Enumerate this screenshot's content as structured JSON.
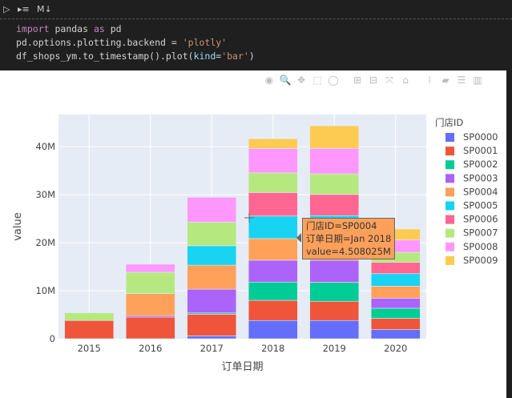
{
  "toolbar": {
    "run_icon": "run-icon",
    "run_below_icon": "run-below-icon",
    "markdown_label": "M↓"
  },
  "code": {
    "line1": {
      "kw": "import",
      "rest": " pandas ",
      "kw2": "as",
      "rest2": " pd"
    },
    "line2": {
      "pre": "pd.options.plotting.backend = ",
      "str": "'plotly'"
    },
    "line3": {
      "pre": "df_shops_ym.to_timestamp().plot(",
      "arg": "kind",
      "eq": "=",
      "str": "'bar'",
      "post": ")"
    }
  },
  "modebar": [
    "camera-icon",
    "zoom-icon",
    "pan-icon",
    "box-select-icon",
    "lasso-icon",
    "zoom-in-icon",
    "zoom-out-icon",
    "autoscale-icon",
    "reset-axes-icon",
    "spike-lines-icon",
    "hover-closest-icon",
    "hover-compare-icon",
    "plotly-logo-icon"
  ],
  "tooltip": {
    "line1": "门店ID=SP0004",
    "line2": "订单日期=Jan 2018",
    "line3": "value=4.508025M"
  },
  "chart_data": {
    "type": "bar",
    "barmode": "stack",
    "xlabel": "订单日期",
    "ylabel": "value",
    "legend_title": "门店ID",
    "legend_placement": "right",
    "categories": [
      "2015",
      "2016",
      "2017",
      "2018",
      "2019",
      "2020"
    ],
    "yticks": [
      "0",
      "10M",
      "20M",
      "30M",
      "40M"
    ],
    "ytick_values": [
      0,
      10000000,
      20000000,
      30000000,
      40000000
    ],
    "ylim": [
      0,
      46700000
    ],
    "grid": true,
    "series": [
      {
        "name": "SP0000",
        "color": "#636efa",
        "values": [
          0,
          0,
          0.6,
          3.8,
          3.8,
          1.9
        ]
      },
      {
        "name": "SP0001",
        "color": "#ef553b",
        "values": [
          3.8,
          4.5,
          4.5,
          4.2,
          4.0,
          2.35
        ]
      },
      {
        "name": "SP0002",
        "color": "#00cc96",
        "values": [
          0,
          0,
          0.27,
          3.8,
          3.95,
          2.1
        ]
      },
      {
        "name": "SP0003",
        "color": "#ab63fa",
        "values": [
          0,
          0.3,
          4.95,
          4.55,
          4.6,
          2.1
        ]
      },
      {
        "name": "SP0004",
        "color": "#ffa15a",
        "values": [
          0,
          4.6,
          5.0,
          4.508025,
          4.5,
          2.5
        ]
      },
      {
        "name": "SP0005",
        "color": "#19d3f3",
        "values": [
          0,
          0,
          4.05,
          4.7,
          4.8,
          2.6
        ]
      },
      {
        "name": "SP0006",
        "color": "#ff6692",
        "values": [
          0,
          0,
          0,
          4.9,
          4.4,
          2.35
        ]
      },
      {
        "name": "SP0007",
        "color": "#b6e880",
        "values": [
          1.6,
          4.45,
          4.9,
          4.1,
          4.3,
          2.1
        ]
      },
      {
        "name": "SP0008",
        "color": "#ff97ff",
        "values": [
          0,
          1.67,
          5.2,
          5.05,
          5.3,
          2.6
        ]
      },
      {
        "name": "SP0009",
        "color": "#fecb52",
        "values": [
          0,
          0,
          0,
          2.05,
          4.7,
          2.25
        ]
      }
    ],
    "value_unit": "M"
  }
}
